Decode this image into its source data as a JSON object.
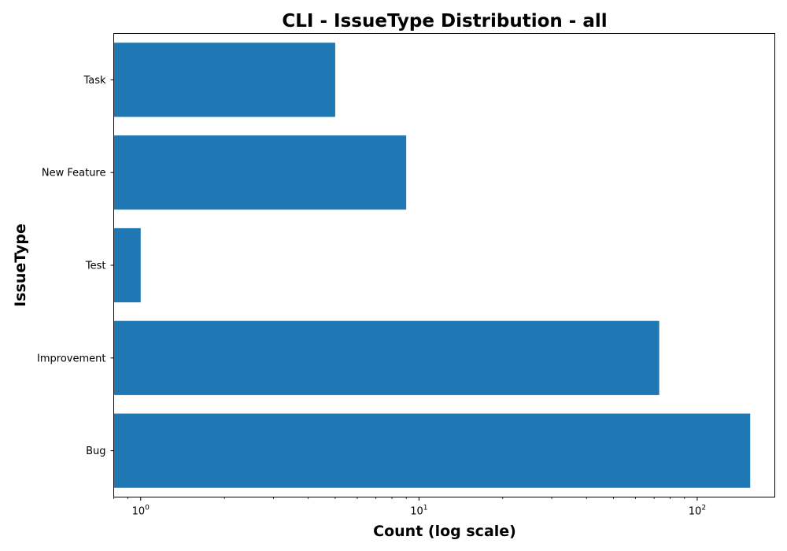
{
  "chart_data": {
    "type": "bar",
    "orientation": "horizontal",
    "title": "CLI - IssueType Distribution - all",
    "xlabel": "Count (log scale)",
    "ylabel": "IssueType",
    "x_scale": "log",
    "xlim": [
      0.8,
      190
    ],
    "categories": [
      "Bug",
      "Improvement",
      "Test",
      "New Feature",
      "Task"
    ],
    "values": [
      155,
      73,
      1,
      9,
      5
    ],
    "x_ticks": [
      {
        "base": "10",
        "exp": "0",
        "value": 1
      },
      {
        "base": "10",
        "exp": "1",
        "value": 10
      },
      {
        "base": "10",
        "exp": "2",
        "value": 100
      }
    ],
    "grid": false,
    "bar_color": "#1f77b4"
  }
}
